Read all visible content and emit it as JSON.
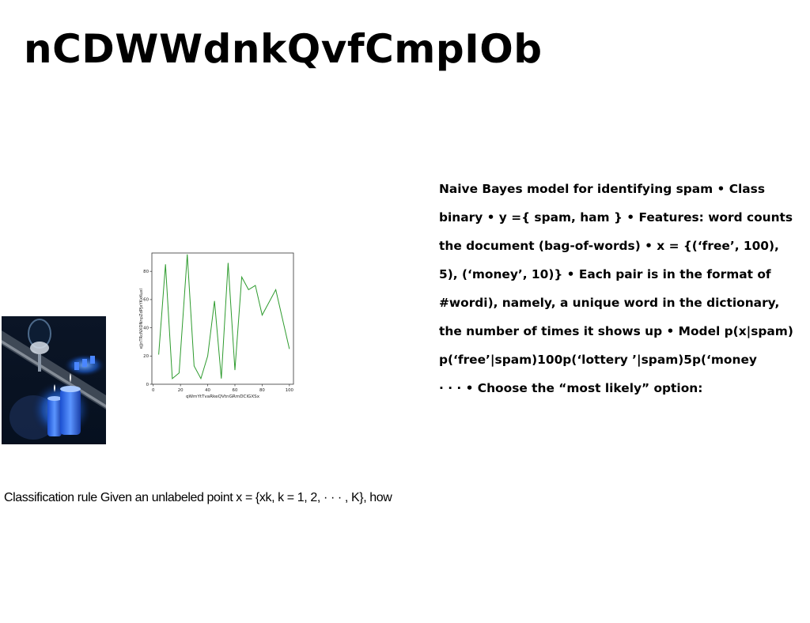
{
  "slide": {
    "title": "nCDWWdnkQvfCmpIOb",
    "body_lines": [
      "Naive Bayes model for identifying spam • Class",
      "binary • y ={ spam, ham } • Features: word counts",
      "the document (bag-of-words) • x = {(‘free’, 100),",
      "5), (‘money’, 10)} • Each pair is in the format of",
      "#wordi), namely, a unique word in the dictionary,",
      "the number of times it shows up • Model p(x|spam)",
      "p(‘free’|spam)100p(‘lottery ’|spam)5p(‘money",
      "· · · • Choose the “most likely” option:"
    ],
    "caption": "Classification rule Given an unlabeled point x = {xk, k = 1, 2, · · · , K}, how"
  },
  "colors": {
    "line": "#2e9b2e",
    "axes": "#333333"
  },
  "chart_data": {
    "type": "line",
    "xlabel": "qWmYtTvaRkeQVtnGRmDClGXSx",
    "ylabel": "eJjnTRcNXDNnpZdPJxYKxKuxl",
    "xlim": [
      -1,
      103
    ],
    "ylim": [
      0,
      93
    ],
    "xticks": [
      0,
      20,
      40,
      60,
      80,
      100
    ],
    "yticks": [
      0,
      20,
      40,
      60,
      80
    ],
    "grid": false,
    "series": [
      {
        "x": [
          4,
          9,
          14,
          19,
          25,
          30,
          35,
          40,
          45,
          50,
          55,
          60,
          65,
          70,
          75,
          80,
          90,
          100
        ],
        "y": [
          21,
          85,
          4,
          8,
          92,
          13,
          4,
          20,
          59,
          4,
          86,
          10,
          76,
          67,
          70,
          49,
          67,
          25
        ]
      }
    ]
  }
}
